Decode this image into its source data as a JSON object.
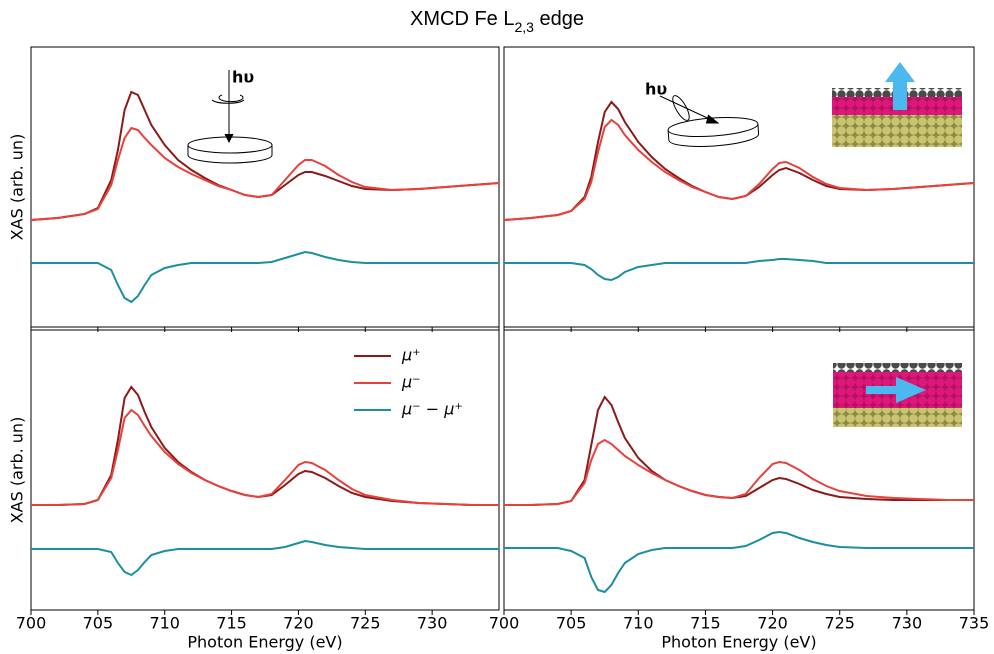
{
  "title": "XMCD Fe L",
  "title_subscript": "2,3",
  "title_suffix": " edge",
  "chart_data": [
    {
      "type": "line",
      "ylabel": "XAS (arb. un)",
      "annotation": "hυ",
      "xlim": [
        700,
        735
      ],
      "ylim": [
        0,
        280
      ],
      "xticks": [
        700,
        705,
        710,
        715,
        720,
        725,
        730,
        735
      ],
      "xtick_labels": false,
      "x": [
        700,
        702,
        704,
        705,
        706,
        706.5,
        707,
        707.5,
        708,
        708.5,
        709,
        710,
        711,
        712,
        713,
        714,
        715,
        716,
        717,
        718,
        719,
        720,
        720.5,
        721,
        722,
        723,
        724,
        725,
        727,
        729,
        731,
        733,
        735
      ],
      "series": [
        {
          "color": "#8b1a1a",
          "values": [
            107,
            109,
            113,
            119,
            147,
            177,
            217,
            235,
            232,
            217,
            202,
            182,
            167,
            157,
            149,
            142,
            137,
            132,
            130,
            132,
            142,
            152,
            155,
            155,
            151,
            146,
            141,
            138,
            137,
            138,
            140,
            142,
            144
          ]
        },
        {
          "color": "#e8413c",
          "values": [
            107,
            109,
            113,
            118,
            142,
            167,
            189,
            199,
            197,
            189,
            182,
            169,
            160,
            153,
            147,
            141,
            137,
            132,
            130,
            132,
            147,
            162,
            167,
            167,
            161,
            152,
            145,
            140,
            137,
            138,
            140,
            142,
            144
          ]
        },
        {
          "color": "#1a8fa0",
          "values": [
            64,
            64,
            64,
            64,
            57,
            42,
            29,
            25,
            31,
            42,
            52,
            59,
            62,
            64,
            64,
            64,
            64,
            64,
            64,
            65,
            69,
            73,
            75,
            74,
            70,
            67,
            65,
            64,
            64,
            64,
            64,
            64,
            64
          ]
        }
      ]
    },
    {
      "type": "line",
      "annotation": "hυ",
      "xlim": [
        700,
        735
      ],
      "ylim": [
        0,
        280
      ],
      "xticks": [
        700,
        705,
        710,
        715,
        720,
        725,
        730,
        735
      ],
      "xtick_labels": false,
      "inset": "up",
      "x": [
        700,
        702,
        704,
        705,
        706,
        706.5,
        707,
        707.5,
        708,
        708.5,
        709,
        710,
        711,
        712,
        713,
        714,
        715,
        716,
        717,
        718,
        719,
        720,
        720.5,
        721,
        722,
        723,
        724,
        725,
        727,
        729,
        731,
        733,
        735
      ],
      "series": [
        {
          "color": "#8b1a1a",
          "values": [
            107,
            109,
            112,
            116,
            130,
            150,
            185,
            215,
            225,
            218,
            205,
            185,
            170,
            158,
            149,
            141,
            135,
            130,
            128,
            131,
            140,
            152,
            157,
            159,
            154,
            147,
            141,
            138,
            137,
            138,
            140,
            142,
            144
          ]
        },
        {
          "color": "#e8413c",
          "values": [
            107,
            109,
            112,
            116,
            128,
            145,
            175,
            200,
            207,
            202,
            192,
            177,
            165,
            155,
            147,
            140,
            135,
            130,
            128,
            131,
            143,
            158,
            164,
            165,
            159,
            150,
            143,
            139,
            137,
            138,
            140,
            142,
            144
          ]
        },
        {
          "color": "#1a8fa0",
          "values": [
            64,
            64,
            64,
            64,
            62,
            58,
            52,
            48,
            47,
            50,
            55,
            60,
            62,
            64,
            64,
            64,
            64,
            64,
            64,
            64,
            66,
            67,
            68,
            68,
            67,
            66,
            64,
            64,
            64,
            64,
            64,
            64,
            64
          ]
        }
      ]
    },
    {
      "type": "line",
      "ylabel": "XAS (arb. un)",
      "xlabel": "Photon Energy (eV)",
      "xlim": [
        700,
        735
      ],
      "ylim": [
        0,
        280
      ],
      "xticks": [
        700,
        705,
        710,
        715,
        720,
        725,
        730
      ],
      "xtick_labels": true,
      "legend": "upper right",
      "x": [
        700,
        702,
        704,
        705,
        706,
        706.5,
        707,
        707.5,
        708,
        708.5,
        709,
        710,
        711,
        712,
        713,
        714,
        715,
        716,
        717,
        718,
        719,
        720,
        720.5,
        721,
        722,
        723,
        724,
        725,
        727,
        729,
        731,
        733,
        735
      ],
      "series": [
        {
          "name": "μ⁺",
          "color": "#8b1a1a",
          "values": [
            105,
            105,
            106,
            110,
            135,
            170,
            212,
            223,
            215,
            198,
            183,
            162,
            148,
            138,
            130,
            124,
            119,
            115,
            113,
            115,
            125,
            136,
            139,
            138,
            132,
            124,
            117,
            113,
            109,
            107,
            106,
            105,
            105
          ]
        },
        {
          "name": "μ⁻",
          "color": "#e8413c",
          "values": [
            105,
            105,
            106,
            110,
            132,
            160,
            192,
            200,
            195,
            184,
            174,
            158,
            146,
            137,
            130,
            124,
            119,
            115,
            113,
            116,
            130,
            145,
            148,
            147,
            140,
            130,
            121,
            115,
            110,
            107,
            106,
            105,
            105
          ]
        },
        {
          "name": "μ⁻ − μ⁺",
          "color": "#1a8fa0",
          "values": [
            61,
            61,
            61,
            61,
            58,
            47,
            38,
            35,
            40,
            48,
            55,
            59,
            61,
            61,
            61,
            61,
            61,
            61,
            61,
            61,
            63,
            67,
            69,
            68,
            65,
            63,
            62,
            61,
            61,
            61,
            61,
            61,
            61
          ]
        }
      ]
    },
    {
      "type": "line",
      "xlabel": "Photon Energy (eV)",
      "xlim": [
        700,
        735
      ],
      "ylim": [
        0,
        280
      ],
      "xticks": [
        700,
        705,
        710,
        715,
        720,
        725,
        730,
        735
      ],
      "xtick_labels": true,
      "inset": "right",
      "x": [
        700,
        702,
        704,
        705,
        706,
        706.5,
        707,
        707.5,
        708,
        708.5,
        709,
        710,
        711,
        712,
        713,
        714,
        715,
        716,
        717,
        718,
        719,
        720,
        720.5,
        721,
        722,
        723,
        724,
        725,
        727,
        729,
        731,
        733,
        735
      ],
      "series": [
        {
          "color": "#8b1a1a",
          "values": [
            105,
            105,
            106,
            109,
            130,
            165,
            200,
            213,
            205,
            188,
            172,
            152,
            139,
            130,
            124,
            119,
            115,
            113,
            112,
            114,
            122,
            130,
            132,
            131,
            126,
            120,
            116,
            113,
            111,
            110,
            110,
            110,
            110
          ]
        },
        {
          "color": "#e8413c",
          "values": [
            105,
            105,
            106,
            109,
            127,
            150,
            166,
            170,
            166,
            160,
            154,
            145,
            137,
            130,
            124,
            119,
            115,
            113,
            112,
            116,
            132,
            146,
            148,
            147,
            140,
            131,
            124,
            119,
            114,
            112,
            111,
            110,
            110
          ]
        },
        {
          "color": "#1a8fa0",
          "values": [
            62,
            62,
            62,
            59,
            52,
            33,
            20,
            18,
            25,
            37,
            47,
            56,
            60,
            62,
            62,
            62,
            62,
            62,
            62,
            64,
            70,
            77,
            78,
            77,
            72,
            68,
            65,
            63,
            62,
            62,
            62,
            62,
            62
          ]
        }
      ]
    }
  ]
}
